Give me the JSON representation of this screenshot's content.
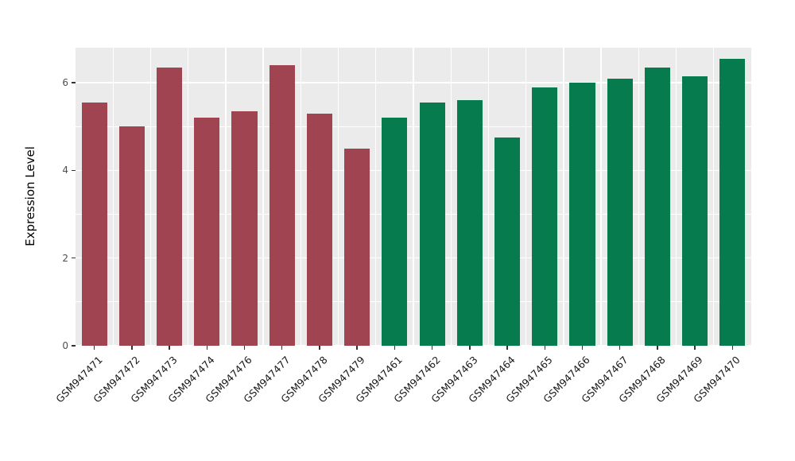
{
  "chart_data": {
    "type": "bar",
    "title": "",
    "xlabel": "",
    "ylabel": "Expression Level",
    "categories": [
      "GSM947471",
      "GSM947472",
      "GSM947473",
      "GSM947474",
      "GSM947476",
      "GSM947477",
      "GSM947478",
      "GSM947479",
      "GSM947461",
      "GSM947462",
      "GSM947463",
      "GSM947464",
      "GSM947465",
      "GSM947466",
      "GSM947467",
      "GSM947468",
      "GSM947469",
      "GSM947470"
    ],
    "values": [
      5.55,
      5.0,
      6.35,
      5.2,
      5.35,
      6.4,
      5.3,
      4.5,
      5.2,
      5.55,
      5.6,
      4.75,
      5.9,
      6.0,
      6.1,
      6.35,
      6.15,
      6.55
    ],
    "groups": [
      "red",
      "red",
      "red",
      "red",
      "red",
      "red",
      "red",
      "red",
      "green",
      "green",
      "green",
      "green",
      "green",
      "green",
      "green",
      "green",
      "green",
      "green"
    ],
    "colors": {
      "red": "#A04451",
      "green": "#067B4E"
    },
    "ylim": [
      0,
      6.8
    ],
    "yticks": [
      0,
      2,
      4,
      6
    ],
    "minor_gridlines": [
      1,
      3,
      5
    ],
    "panel_bg": "#EBEBEB",
    "grid_color": "#FFFFFF",
    "legend": "none",
    "bar_width_ratio": 0.68
  }
}
